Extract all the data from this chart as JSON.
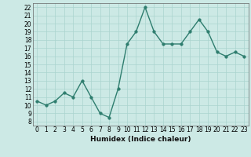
{
  "x": [
    0,
    1,
    2,
    3,
    4,
    5,
    6,
    7,
    8,
    9,
    10,
    11,
    12,
    13,
    14,
    15,
    16,
    17,
    18,
    19,
    20,
    21,
    22,
    23
  ],
  "y": [
    10.5,
    10.0,
    10.5,
    11.5,
    11.0,
    13.0,
    11.0,
    9.0,
    8.5,
    12.0,
    17.5,
    19.0,
    22.0,
    19.0,
    17.5,
    17.5,
    17.5,
    19.0,
    20.5,
    19.0,
    16.5,
    16.0,
    16.5,
    16.0
  ],
  "xlabel": "Humidex (Indice chaleur)",
  "ylim": [
    7.5,
    22.5
  ],
  "xlim": [
    -0.5,
    23.5
  ],
  "yticks": [
    8,
    9,
    10,
    11,
    12,
    13,
    14,
    15,
    16,
    17,
    18,
    19,
    20,
    21,
    22
  ],
  "xticks": [
    0,
    1,
    2,
    3,
    4,
    5,
    6,
    7,
    8,
    9,
    10,
    11,
    12,
    13,
    14,
    15,
    16,
    17,
    18,
    19,
    20,
    21,
    22,
    23
  ],
  "line_color": "#2e7d6e",
  "marker_color": "#2e7d6e",
  "bg_color": "#cce9e5",
  "grid_color": "#aad4cf",
  "tick_fontsize": 5.5,
  "xlabel_fontsize": 6.5,
  "line_width": 1.0,
  "marker_size": 2.5
}
